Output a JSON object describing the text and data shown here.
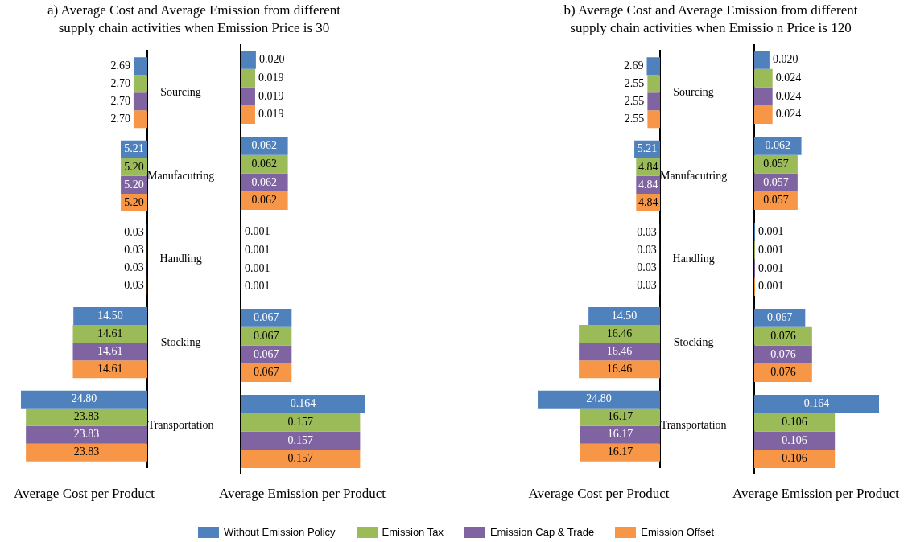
{
  "chart_data": [
    {
      "type": "bar",
      "orientation": "horizontal",
      "title": "a) Average Cost and Average Emission from different\nsupply chain activities when Emission Price is 30",
      "xlabel": "Average Cost per Product",
      "categories": [
        "Sourcing",
        "Manufacutring",
        "Handling",
        "Stocking",
        "Transportation"
      ],
      "xlim": [
        24.8,
        0
      ],
      "tick_labels": "y",
      "legend": "bottom",
      "series": [
        {
          "name": "Without Emission Policy",
          "color": "#4f81bd",
          "values": [
            2.69,
            5.21,
            0.03,
            14.5,
            24.8
          ],
          "value_labels": [
            "2.69",
            "5.21",
            "0.03",
            "14.50",
            "24.80"
          ]
        },
        {
          "name": "Emission Tax",
          "color": "#9bbb59",
          "values": [
            2.7,
            5.2,
            0.03,
            14.61,
            23.83
          ],
          "value_labels": [
            "2.70",
            "5.20",
            "0.03",
            "14.61",
            "23.83"
          ]
        },
        {
          "name": "Emission Cap & Trade",
          "color": "#8064a2",
          "values": [
            2.7,
            5.2,
            0.03,
            14.61,
            23.83
          ],
          "value_labels": [
            "2.70",
            "5.20",
            "0.03",
            "14.61",
            "23.83"
          ]
        },
        {
          "name": "Emission Offset",
          "color": "#f79646",
          "values": [
            2.7,
            5.2,
            0.03,
            14.61,
            23.83
          ],
          "value_labels": [
            "2.70",
            "5.20",
            "0.03",
            "14.61",
            "23.83"
          ]
        }
      ]
    },
    {
      "type": "bar",
      "orientation": "horizontal",
      "xlabel": "Average Emission per Product",
      "categories": [
        null,
        null,
        null,
        null,
        null
      ],
      "xlim": [
        0,
        0.164
      ],
      "tick_labels": false,
      "series": [
        {
          "color": "#4f81bd",
          "values": [
            0.02,
            0.062,
            0.001,
            0.067,
            0.164
          ],
          "value_labels": [
            "0.020",
            "0.062",
            "0.001",
            "0.067",
            "0.164"
          ]
        },
        {
          "color": "#9bbb59",
          "values": [
            0.019,
            0.062,
            0.001,
            0.067,
            0.157
          ],
          "value_labels": [
            "0.019",
            "0.062",
            "0.001",
            "0.067",
            "0.157"
          ]
        },
        {
          "color": "#8064a2",
          "values": [
            0.019,
            0.062,
            0.001,
            0.067,
            0.157
          ],
          "value_labels": [
            "0.019",
            "0.062",
            "0.001",
            "0.067",
            "0.157"
          ]
        },
        {
          "color": "#f79646",
          "values": [
            0.019,
            0.062,
            0.001,
            0.067,
            0.157
          ],
          "value_labels": [
            "0.019",
            "0.062",
            "0.001",
            "0.067",
            "0.157"
          ]
        }
      ]
    },
    {
      "type": "bar",
      "orientation": "horizontal",
      "title": "b) Average Cost and Average Emission from different\nsupply chain activities when Emissio n Price is 120",
      "xlabel": "Average Cost per Product",
      "categories": [
        "Sourcing",
        "Manufacutring",
        "Handling",
        "Stocking",
        "Transportation"
      ],
      "xlim": [
        24.8,
        0
      ],
      "tick_labels": "y",
      "series": [
        {
          "color": "#4f81bd",
          "values": [
            2.69,
            5.21,
            0.03,
            14.5,
            24.8
          ],
          "value_labels": [
            "2.69",
            "5.21",
            "0.03",
            "14.50",
            "24.80"
          ]
        },
        {
          "color": "#9bbb59",
          "values": [
            2.55,
            4.84,
            0.03,
            16.46,
            16.17
          ],
          "value_labels": [
            "2.55",
            "4.84",
            "0.03",
            "16.46",
            "16.17"
          ]
        },
        {
          "color": "#8064a2",
          "values": [
            2.55,
            4.84,
            0.03,
            16.46,
            16.17
          ],
          "value_labels": [
            "2.55",
            "4.84",
            "0.03",
            "16.46",
            "16.17"
          ]
        },
        {
          "color": "#f79646",
          "values": [
            2.55,
            4.84,
            0.03,
            16.46,
            16.17
          ],
          "value_labels": [
            "2.55",
            "4.84",
            "0.03",
            "16.46",
            "16.17"
          ]
        }
      ]
    },
    {
      "type": "bar",
      "orientation": "horizontal",
      "xlabel": "Average Emission per Product",
      "categories": [
        null,
        null,
        null,
        null,
        null
      ],
      "xlim": [
        0,
        0.164
      ],
      "tick_labels": false,
      "series": [
        {
          "color": "#4f81bd",
          "values": [
            0.02,
            0.062,
            0.001,
            0.067,
            0.164
          ],
          "value_labels": [
            "0.020",
            "0.062",
            "0.001",
            "0.067",
            "0.164"
          ]
        },
        {
          "color": "#9bbb59",
          "values": [
            0.024,
            0.057,
            0.001,
            0.076,
            0.106
          ],
          "value_labels": [
            "0.024",
            "0.057",
            "0.001",
            "0.076",
            "0.106"
          ]
        },
        {
          "color": "#8064a2",
          "values": [
            0.024,
            0.057,
            0.001,
            0.076,
            0.106
          ],
          "value_labels": [
            "0.024",
            "0.057",
            "0.001",
            "0.076",
            "0.106"
          ]
        },
        {
          "color": "#f79646",
          "values": [
            0.024,
            0.057,
            0.001,
            0.076,
            0.106
          ],
          "value_labels": [
            "0.024",
            "0.057",
            "0.001",
            "0.076",
            "0.106"
          ]
        }
      ]
    }
  ]
}
